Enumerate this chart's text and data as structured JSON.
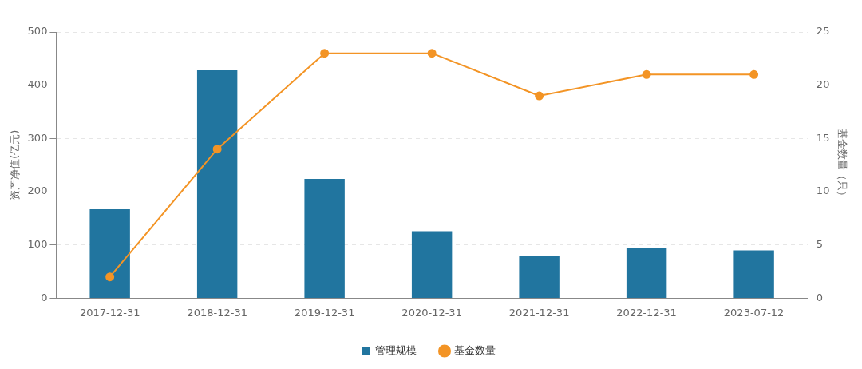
{
  "chart_data": {
    "type": "bar",
    "categories": [
      "2017-12-31",
      "2018-12-31",
      "2019-12-31",
      "2020-12-31",
      "2021-12-31",
      "2022-12-31",
      "2023-07-12"
    ],
    "series": [
      {
        "name": "管理规模",
        "color": "#21759f",
        "values": [
          167,
          428,
          224,
          126,
          80,
          94,
          90
        ]
      },
      {
        "name": "基金数量",
        "type": "line",
        "axis": "y2",
        "color": "#f39425",
        "values": [
          2,
          14,
          23,
          23,
          19,
          21,
          21
        ],
        "marker": "circle",
        "line_style": "solid"
      }
    ],
    "ylabel": "资产净值(亿元)",
    "y2label": "基金数量（只）",
    "ylim": [
      0,
      500
    ],
    "yticks": [
      0,
      100,
      200,
      300,
      400,
      500
    ],
    "y2lim": [
      0,
      25
    ],
    "y2ticks": [
      0,
      5,
      10,
      15,
      20,
      25
    ],
    "grid": "y",
    "legend": "bottom"
  }
}
